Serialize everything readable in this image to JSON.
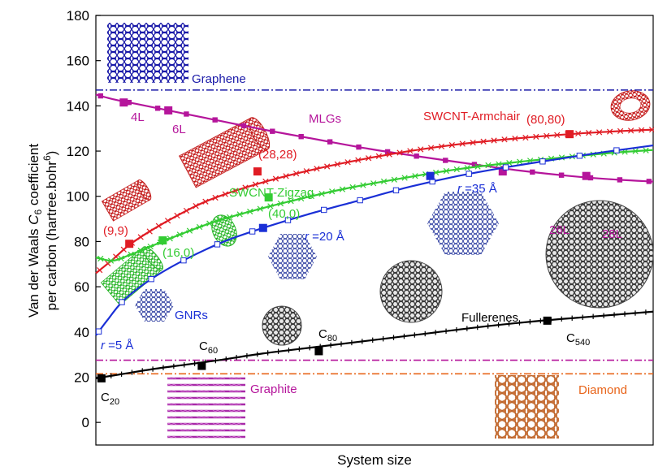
{
  "chart_data": {
    "type": "line",
    "ylabel_line1_pre": "Van der Waals ",
    "ylabel_line1_C": "C",
    "ylabel_line1_sub": "6",
    "ylabel_line1_post": " coefficient",
    "ylabel_line2_pre": "per carbon (hartree.bohr",
    "ylabel_line2_sup": "6",
    "ylabel_line2_post": ")",
    "xlabel": "System size",
    "ylim": [
      -10,
      180
    ],
    "xlim": [
      0,
      100
    ],
    "y_ticks": [
      "0",
      "20",
      "40",
      "60",
      "80",
      "100",
      "120",
      "140",
      "160",
      "180"
    ],
    "series": [
      {
        "name": "MLGs",
        "color": "#b5159b",
        "marker": "square",
        "x": [
          0,
          3,
          7,
          12,
          18,
          25,
          32,
          40,
          49,
          58,
          67,
          76,
          85,
          92,
          100
        ],
        "y": [
          145,
          143,
          141,
          138.5,
          135.5,
          132,
          128.6,
          125,
          121,
          117.6,
          114.4,
          111.4,
          109,
          107.6,
          106.5
        ],
        "highlight": [
          {
            "x": 5,
            "y": 141.5
          },
          {
            "x": 13,
            "y": 138
          },
          {
            "x": 73,
            "y": 111
          },
          {
            "x": 88,
            "y": 109
          }
        ]
      },
      {
        "name": "SWCNT-Armchair",
        "color": "#e01c24",
        "marker": "cross",
        "x": [
          0,
          3,
          6,
          10,
          15,
          20,
          27,
          35,
          45,
          55,
          65,
          75,
          85,
          93,
          100
        ],
        "y": [
          66,
          72,
          78.5,
          85,
          92,
          98,
          104,
          109.5,
          115,
          119.5,
          123,
          125.5,
          127.5,
          128.7,
          129.5
        ],
        "highlight": [
          {
            "x": 6,
            "y": 79
          },
          {
            "x": 29,
            "y": 111
          },
          {
            "x": 85,
            "y": 127.5
          }
        ]
      },
      {
        "name": "SWCNT-Zigzag",
        "color": "#33cc33",
        "marker": "asterisk",
        "x": [
          0,
          3,
          6,
          10,
          15,
          21,
          28,
          36,
          45,
          55,
          65,
          75,
          85,
          93,
          100
        ],
        "y": [
          73,
          71.5,
          74,
          78,
          83,
          88.5,
          93.5,
          98.5,
          103.5,
          108,
          112,
          115,
          117.5,
          119.3,
          120.5
        ],
        "highlight": [
          {
            "x": 12,
            "y": 80.5
          },
          {
            "x": 31,
            "y": 99.5
          }
        ]
      },
      {
        "name": "GNRs",
        "color": "#1a2fd6",
        "marker": "open-square",
        "x": [
          0,
          2,
          5,
          10,
          16,
          23,
          30,
          38,
          47,
          56,
          65,
          74,
          83,
          91,
          100
        ],
        "y": [
          38.5,
          45,
          54,
          63.5,
          72,
          80,
          86,
          92,
          98,
          104,
          109,
          113,
          116.5,
          119.5,
          122.5
        ],
        "highlight": [
          {
            "x": 30,
            "y": 86
          },
          {
            "x": 60,
            "y": 109
          }
        ]
      },
      {
        "name": "Fullerenes",
        "color": "#000000",
        "marker": "plus",
        "x": [
          0,
          5,
          10,
          16,
          22,
          30,
          40,
          50,
          60,
          70,
          80,
          90,
          100
        ],
        "y": [
          19.5,
          21.5,
          23.5,
          25.5,
          27.5,
          30.5,
          33.5,
          36.5,
          39.5,
          42.5,
          45,
          47,
          49
        ],
        "highlight": [
          {
            "x": 1,
            "y": 19.5
          },
          {
            "x": 19,
            "y": 25
          },
          {
            "x": 40,
            "y": 31.5
          },
          {
            "x": 81,
            "y": 45
          }
        ]
      }
    ],
    "reference_lines": [
      {
        "name": "Graphene",
        "y": 147,
        "color": "#1a1aa8"
      },
      {
        "name": "Graphite",
        "y": 27.5,
        "color": "#b5159b"
      },
      {
        "name": "Diamond",
        "y": 21.5,
        "color": "#e8641a"
      }
    ],
    "annotations": {
      "graphene": "Graphene",
      "graphite": "Graphite",
      "diamond": "Diamond",
      "mlgs": "MLGs",
      "l4": "4L",
      "l6": "6L",
      "l26": "26L",
      "l28": "28L",
      "armchair": "SWCNT-Armchair",
      "a99": "(9,9)",
      "a2828": "(28,28)",
      "a8080": "(80,80)",
      "zigzag": "SWCNT-Zigzag",
      "z160": "(16,0)",
      "z400": "(40,0)",
      "gnrs": "GNRs",
      "r5_r": "r",
      "r5_v": " =5 Å",
      "r20_r": "r",
      "r20_v": " =20 Å",
      "r35_r": "r",
      "r35_v": " =35 Å",
      "fullerenes": "Fullerenes",
      "c20": "C",
      "c20_sub": "20",
      "c60": "C",
      "c60_sub": "60",
      "c80": "C",
      "c80_sub": "80",
      "c540": "C",
      "c540_sub": "540"
    }
  }
}
